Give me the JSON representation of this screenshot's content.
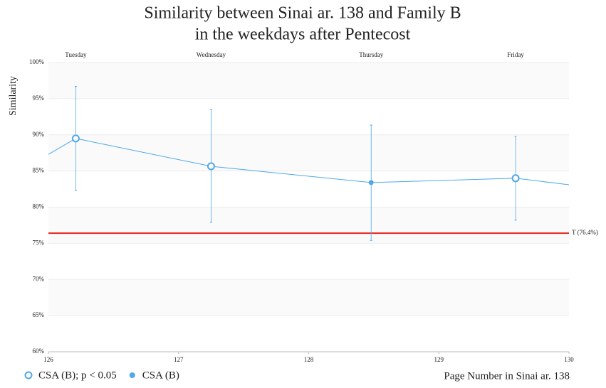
{
  "chart_data": {
    "type": "line",
    "title": [
      "Similarity between Sinai ar. 138 and Family B",
      "in the weekdays after Pentecost"
    ],
    "ylabel": "Similarity",
    "xlabel": "Page Number in Sinai ar. 138",
    "xlim": [
      126,
      130
    ],
    "xticks": [
      126,
      127,
      128,
      129,
      130
    ],
    "ylim": [
      60,
      100
    ],
    "yticks": [
      {
        "value": 60,
        "label": "60%"
      },
      {
        "value": 65,
        "label": "65%"
      },
      {
        "value": 70,
        "label": "70%"
      },
      {
        "value": 75,
        "label": "75%"
      },
      {
        "value": 80,
        "label": "80%"
      },
      {
        "value": 85,
        "label": "85%"
      },
      {
        "value": 90,
        "label": "90%"
      },
      {
        "value": 95,
        "label": "95%"
      },
      {
        "value": 100,
        "label": "100%"
      }
    ],
    "grid": true,
    "series": [
      {
        "color": "#4ea8ea",
        "x": [
          126,
          126.21,
          127.25,
          128.48,
          129.59,
          130
        ],
        "values": [
          87.3,
          89.5,
          85.65,
          83.4,
          84.0,
          83.1
        ],
        "error_low": [
          null,
          82.3,
          77.9,
          75.4,
          78.2,
          null
        ],
        "error_high": [
          null,
          96.7,
          93.5,
          91.35,
          89.8,
          null
        ],
        "markers": [
          null,
          "open",
          "open",
          "filled",
          "open",
          null
        ]
      }
    ],
    "day_labels": [
      {
        "text": "Tuesday",
        "x": 126.21
      },
      {
        "text": "Wednesday",
        "x": 127.25
      },
      {
        "text": "Thursday",
        "x": 128.48
      },
      {
        "text": "Friday",
        "x": 129.59
      }
    ],
    "threshold": {
      "value": 76.4,
      "label": "T (76.4%)",
      "color": "#e8241c"
    },
    "legend": [
      {
        "name": "CSA (B); p < 0.05",
        "marker": "open"
      },
      {
        "name": "CSA (B)",
        "marker": "filled"
      }
    ]
  }
}
